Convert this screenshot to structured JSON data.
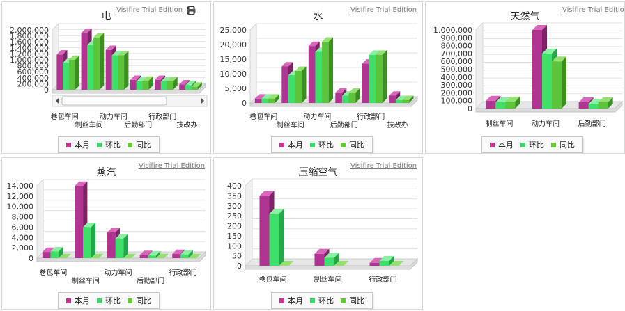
{
  "watermark": "Visifire Trial Edition",
  "legend": [
    {
      "label": "本月",
      "color": "#cc3399"
    },
    {
      "label": "环比",
      "color": "#33dd66"
    },
    {
      "label": "同比",
      "color": "#66cc33"
    }
  ],
  "chart_data": [
    {
      "type": "bar",
      "title": "电",
      "categories": [
        "卷包车间",
        "制丝车间",
        "动力车间",
        "后勤部门",
        "行政部门",
        "技改办"
      ],
      "series": [
        {
          "name": "本月",
          "values": [
            1180000,
            1900000,
            1330000,
            330000,
            330000,
            180000
          ]
        },
        {
          "name": "环比",
          "values": [
            900000,
            1500000,
            1150000,
            280000,
            280000,
            150000
          ]
        },
        {
          "name": "同比",
          "values": [
            1000000,
            1750000,
            1150000,
            300000,
            280000,
            100000
          ]
        }
      ],
      "ylim": [
        0,
        2000000
      ],
      "yticks": [
        "2,000,000",
        "1,800,000",
        "1,600,000",
        "1,400,000",
        "1,200,000",
        "1,000,000",
        "800,000",
        "600,000",
        "400,000",
        "200,000",
        "0"
      ],
      "scrollbar": true,
      "tools": [
        "save-icon",
        "print-icon"
      ]
    },
    {
      "type": "bar",
      "title": "水",
      "categories": [
        "卷包车间",
        "制丝车间",
        "动力车间",
        "后勤部门",
        "行政部门",
        "技改办"
      ],
      "series": [
        {
          "name": "本月",
          "values": [
            1500,
            12500,
            19500,
            3500,
            13500,
            2500
          ]
        },
        {
          "name": "环比",
          "values": [
            1500,
            9500,
            17500,
            2500,
            16500,
            1000
          ]
        },
        {
          "name": "同比",
          "values": [
            1500,
            11000,
            21000,
            3500,
            16500,
            1000
          ]
        }
      ],
      "ylim": [
        0,
        25000
      ],
      "yticks": [
        "25,000",
        "20,000",
        "15,000",
        "10,000",
        "5,000",
        "0"
      ]
    },
    {
      "type": "bar",
      "title": "天然气",
      "categories": [
        "制丝车间",
        "动力车间",
        "后勤部门"
      ],
      "series": [
        {
          "name": "本月",
          "values": [
            100000,
            1000000,
            80000
          ]
        },
        {
          "name": "环比",
          "values": [
            80000,
            700000,
            60000
          ]
        },
        {
          "name": "同比",
          "values": [
            90000,
            600000,
            80000
          ]
        }
      ],
      "ylim": [
        0,
        1000000
      ],
      "yticks": [
        "1,000,000",
        "900,000",
        "800,000",
        "700,000",
        "600,000",
        "500,000",
        "400,000",
        "300,000",
        "200,000",
        "100,000",
        "0"
      ]
    },
    {
      "type": "bar",
      "title": "蒸汽",
      "categories": [
        "卷包车间",
        "制丝车间",
        "动力车间",
        "后勤部门",
        "行政部门"
      ],
      "series": [
        {
          "name": "本月",
          "values": [
            1200,
            14000,
            5000,
            600,
            800
          ]
        },
        {
          "name": "环比",
          "values": [
            1300,
            6000,
            3800,
            500,
            700
          ]
        },
        {
          "name": "同比",
          "values": [
            0,
            0,
            0,
            0,
            0
          ]
        }
      ],
      "ylim": [
        0,
        14000
      ],
      "yticks": [
        "14,000",
        "12,000",
        "10,000",
        "8,000",
        "6,000",
        "4,000",
        "2,000",
        "0"
      ]
    },
    {
      "type": "bar",
      "title": "压缩空气",
      "categories": [
        "卷包车间",
        "制丝车间",
        "行政部门"
      ],
      "series": [
        {
          "name": "本月",
          "values": [
            350,
            60,
            15
          ]
        },
        {
          "name": "环比",
          "values": [
            260,
            40,
            25
          ]
        },
        {
          "name": "同比",
          "values": [
            0,
            0,
            0
          ]
        }
      ],
      "ylim": [
        0,
        400
      ],
      "yticks": [
        "400",
        "350",
        "300",
        "250",
        "200",
        "150",
        "100",
        "50",
        "0"
      ]
    }
  ]
}
